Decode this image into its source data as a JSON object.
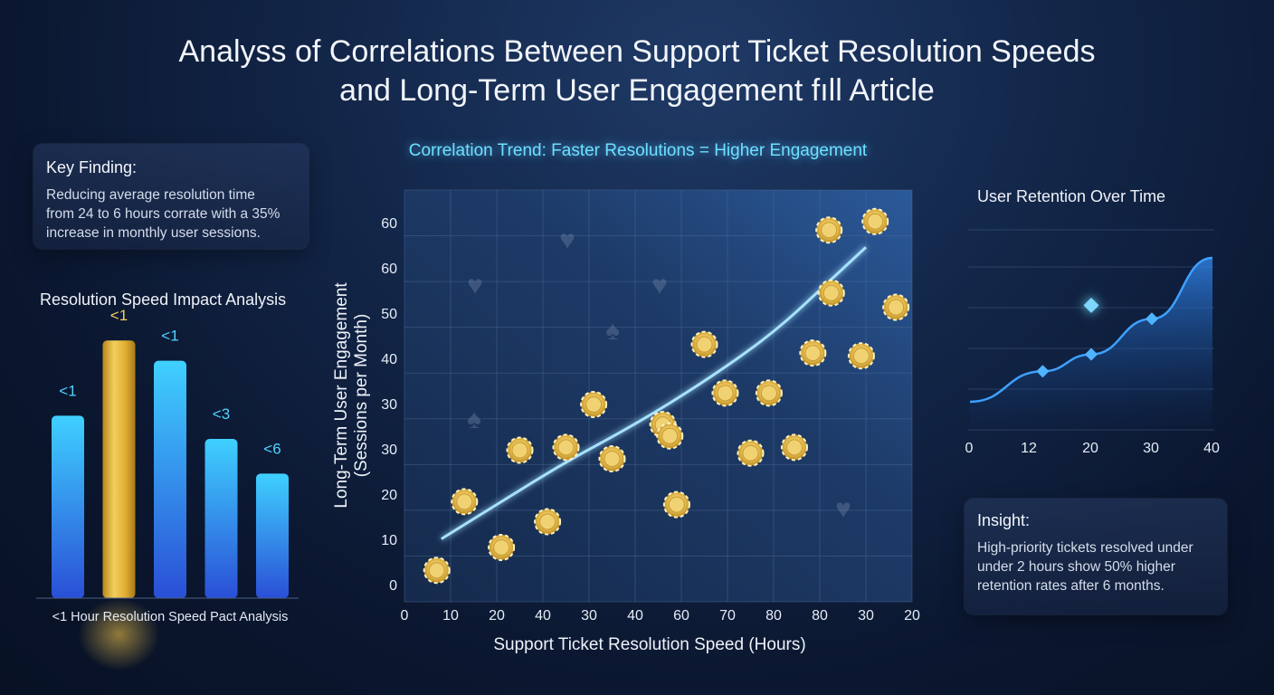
{
  "page_title_lines": [
    "Analyss of Correlations Between Support Ticket Resolution Speeds",
    "and Long-Term User Engagement fıll Article"
  ],
  "key_finding": {
    "heading": "Key Finding:",
    "lines": [
      "Reducing average resolution time",
      "from 24 to 6 hours corrate with a 35%",
      "increase in monthly user sessions."
    ]
  },
  "insight": {
    "heading": "Insight:",
    "lines": [
      "High-priority tickets resolved under",
      "under 2 hours show 50% higher",
      "retention rates after 6 months."
    ]
  },
  "colors": {
    "accent_cyan": "#6ee0ff",
    "bar_blue_top": "#3fd0ff",
    "bar_blue_bottom": "#2a4fd6",
    "bar_gold": "#e8b83a",
    "chip_gold": "#e9c55a",
    "trend_line": "#9fdcff"
  },
  "chart_data": [
    {
      "type": "bar",
      "title": "Resolution Speed Impact Analysis",
      "xlabel": "<1 Hour Resolution Speed Pact Analysis",
      "categories": [
        "<1",
        "<1",
        "<1",
        "<3",
        "<6"
      ],
      "values": [
        0.63,
        0.89,
        0.82,
        0.55,
        0.43
      ],
      "value_scale": "relative bar height (no axis printed)",
      "highlighted_index": 1
    },
    {
      "type": "scatter",
      "title": "Correlation Trend: Faster Resolutions = Higher Engagement",
      "xlabel": "Support Ticket Resolution Speed (Hours)",
      "ylabel": "Long-Term User Engagement (Sessions per Month)",
      "x_tick_labels": [
        "0",
        "10",
        "20",
        "40",
        "30",
        "40",
        "60",
        "70",
        "80",
        "80",
        "30",
        "20"
      ],
      "y_tick_labels": [
        "0",
        "10",
        "20",
        "30",
        "30",
        "40",
        "50",
        "60",
        "60"
      ],
      "grid": true,
      "points": [
        {
          "x": 7,
          "y": 5.5
        },
        {
          "x": 13,
          "y": 17.5
        },
        {
          "x": 21,
          "y": 9.5
        },
        {
          "x": 25,
          "y": 26.5
        },
        {
          "x": 31,
          "y": 14
        },
        {
          "x": 35,
          "y": 27
        },
        {
          "x": 41,
          "y": 34.5
        },
        {
          "x": 45,
          "y": 25
        },
        {
          "x": 56,
          "y": 31
        },
        {
          "x": 57.5,
          "y": 29
        },
        {
          "x": 59,
          "y": 17
        },
        {
          "x": 65,
          "y": 45
        },
        {
          "x": 69.5,
          "y": 36.5
        },
        {
          "x": 75,
          "y": 26
        },
        {
          "x": 79,
          "y": 36.5
        },
        {
          "x": 84.5,
          "y": 27
        },
        {
          "x": 88.5,
          "y": 43.5
        },
        {
          "x": 92.5,
          "y": 54
        },
        {
          "x": 92,
          "y": 65
        },
        {
          "x": 99,
          "y": 43
        },
        {
          "x": 102,
          "y": 66.5
        },
        {
          "x": 106.5,
          "y": 51.5
        }
      ],
      "trend_line": [
        [
          8,
          11
        ],
        [
          20,
          17
        ],
        [
          35,
          24.5
        ],
        [
          50,
          31
        ],
        [
          65,
          38.5
        ],
        [
          80,
          47
        ],
        [
          92,
          56
        ],
        [
          100,
          62
        ]
      ],
      "decorations": [
        "heart",
        "heart",
        "heart",
        "spade",
        "spade",
        "heart"
      ]
    },
    {
      "type": "area",
      "title": "User Retention Over Time",
      "x_tick_labels": [
        "0",
        "12",
        "20",
        "30",
        "40"
      ],
      "x": [
        0,
        12,
        20,
        30,
        40
      ],
      "values": [
        0.15,
        0.33,
        0.43,
        0.64,
        1.0
      ],
      "markers": [
        {
          "x": 12,
          "y": 0.33
        },
        {
          "x": 20,
          "y": 0.43
        },
        {
          "x": 30,
          "y": 0.64
        }
      ],
      "highlight_marker": {
        "x": 20,
        "y": 0.72
      },
      "value_scale": "relative (no y axis printed)"
    }
  ]
}
